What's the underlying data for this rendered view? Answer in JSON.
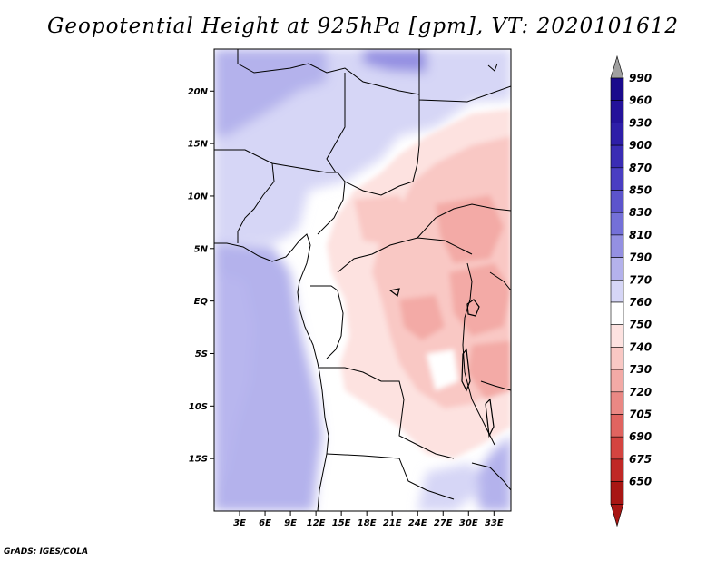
{
  "title": "Geopotential Height at 925hPa [gpm], VT: 2020101612",
  "credit": "GrADS: IGES/COLA",
  "map": {
    "lat_range": [
      -20,
      24
    ],
    "lon_range": [
      0,
      35
    ],
    "lat_ticks": [
      {
        "value": 20,
        "label": "20N"
      },
      {
        "value": 15,
        "label": "15N"
      },
      {
        "value": 10,
        "label": "10N"
      },
      {
        "value": 5,
        "label": "5N"
      },
      {
        "value": 0,
        "label": "EQ"
      },
      {
        "value": -5,
        "label": "5S"
      },
      {
        "value": -10,
        "label": "10S"
      },
      {
        "value": -15,
        "label": "15S"
      }
    ],
    "lon_ticks": [
      {
        "value": 3,
        "label": "3E"
      },
      {
        "value": 6,
        "label": "6E"
      },
      {
        "value": 9,
        "label": "9E"
      },
      {
        "value": 12,
        "label": "12E"
      },
      {
        "value": 15,
        "label": "15E"
      },
      {
        "value": 18,
        "label": "18E"
      },
      {
        "value": 21,
        "label": "21E"
      },
      {
        "value": 24,
        "label": "24E"
      },
      {
        "value": 27,
        "label": "27E"
      },
      {
        "value": 30,
        "label": "30E"
      },
      {
        "value": 33,
        "label": "33E"
      }
    ]
  },
  "colorbar": {
    "levels": [
      {
        "label": "990",
        "color": "#1a0a8c"
      },
      {
        "label": "960",
        "color": "#24129a"
      },
      {
        "label": "930",
        "color": "#2e1ea8"
      },
      {
        "label": "900",
        "color": "#3a2cb4"
      },
      {
        "label": "870",
        "color": "#4a3ec2"
      },
      {
        "label": "850",
        "color": "#5c54cc"
      },
      {
        "label": "830",
        "color": "#7470d8"
      },
      {
        "label": "810",
        "color": "#9490e2"
      },
      {
        "label": "790",
        "color": "#b4b2ec"
      },
      {
        "label": "770",
        "color": "#d6d6f6"
      },
      {
        "label": "760",
        "color": "#ffffff"
      },
      {
        "label": "750",
        "color": "#fde2e0"
      },
      {
        "label": "740",
        "color": "#f9c8c4"
      },
      {
        "label": "730",
        "color": "#f3aaa6"
      },
      {
        "label": "720",
        "color": "#ea8884"
      },
      {
        "label": "705",
        "color": "#e06460"
      },
      {
        "label": "690",
        "color": "#d44440"
      },
      {
        "label": "675",
        "color": "#c02826"
      },
      {
        "label": "650",
        "color": "#a81614"
      }
    ],
    "top_arrow_color": "#a0a0a0",
    "bottom_arrow_color": "#a81614"
  }
}
